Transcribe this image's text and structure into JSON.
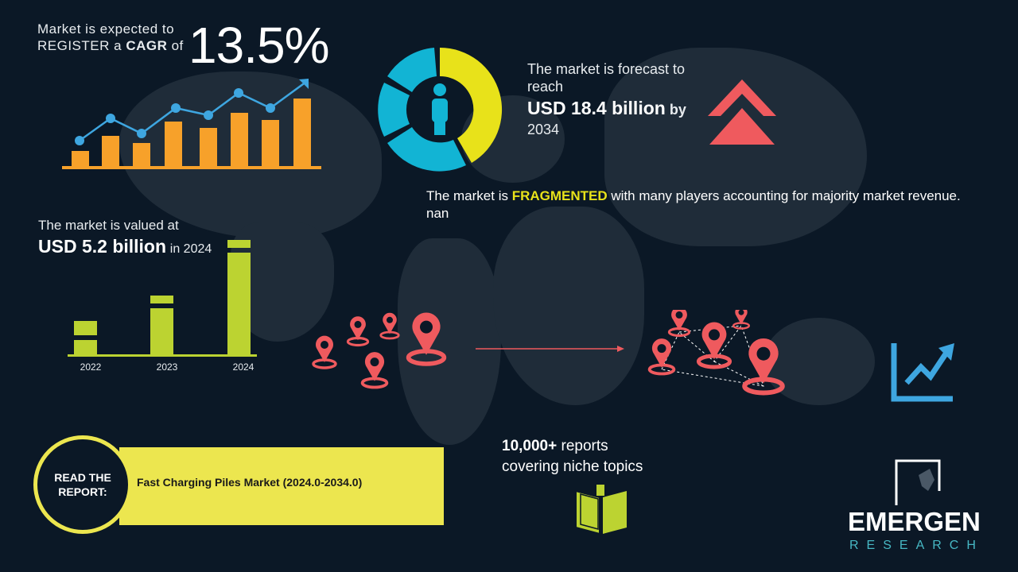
{
  "cagr": {
    "line1": "Market is expected to",
    "line2_pre": "REGISTER a ",
    "line2_bold": "CAGR",
    "line2_post": " of",
    "value": "13.5%"
  },
  "forecast": {
    "line1": "The market is forecast to",
    "line2": "reach",
    "value": "USD 18.4 billion",
    "by": "by",
    "year": "2034"
  },
  "fragmented": {
    "pre": "The market is ",
    "highlight": "FRAGMENTED",
    "post": " with many players accounting for majority market revenue. nan"
  },
  "valued": {
    "line1": "The market is valued at",
    "value": "USD 5.2 billion",
    "in_year": "in 2024"
  },
  "bar_years": [
    "2022",
    "2023",
    "2024"
  ],
  "read": {
    "circle_text": "READ THE REPORT:",
    "title": "Fast Charging Piles Market (2024.0-2034.0)"
  },
  "reports": {
    "count": "10,000+",
    "line1_post": " reports",
    "line2": "covering niche topics"
  },
  "logo": {
    "name": "EMERGEN",
    "sub": "RESEARCH"
  },
  "colors": {
    "background": "#0b1826",
    "orange": "#f7a12a",
    "blue": "#3ea6e0",
    "yellow": "#ece64f",
    "lime": "#bcd331",
    "cyan": "#12b4d4",
    "red": "#ef5a5e"
  }
}
